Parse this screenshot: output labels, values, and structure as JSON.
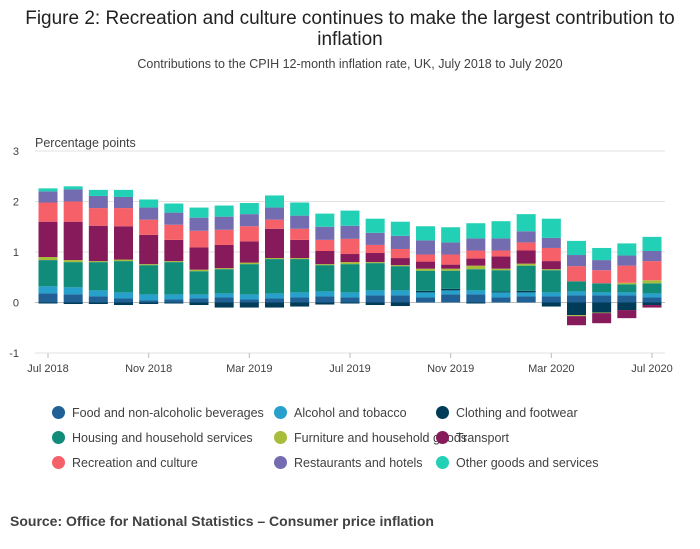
{
  "title": "Figure 2: Recreation and culture continues to make the largest contribution to inflation",
  "subtitle": "Contributions to the CPIH 12-month inflation rate, UK, July 2018 to July 2020",
  "source": "Source: Office for National Statistics – Consumer price inflation",
  "chart_data": {
    "type": "bar",
    "stacked": true,
    "ylabel": "Percentage points",
    "ylim": [
      -1,
      3
    ],
    "yticks": [
      "-1",
      "0",
      "1",
      "2",
      "3"
    ],
    "grid": true,
    "legend_position": "bottom",
    "x_ticks": [
      {
        "index": 0,
        "label": "Jul 2018"
      },
      {
        "index": 4,
        "label": "Nov 2018"
      },
      {
        "index": 8,
        "label": "Mar 2019"
      },
      {
        "index": 12,
        "label": "Jul 2019"
      },
      {
        "index": 16,
        "label": "Nov 2019"
      },
      {
        "index": 20,
        "label": "Mar 2020"
      },
      {
        "index": 24,
        "label": "Jul 2020"
      }
    ],
    "categories": [
      "Jul 2018",
      "Aug 2018",
      "Sep 2018",
      "Oct 2018",
      "Nov 2018",
      "Dec 2018",
      "Jan 2019",
      "Feb 2019",
      "Mar 2019",
      "Apr 2019",
      "May 2019",
      "Jun 2019",
      "Jul 2019",
      "Aug 2019",
      "Sep 2019",
      "Oct 2019",
      "Nov 2019",
      "Dec 2019",
      "Jan 2020",
      "Feb 2020",
      "Mar 2020",
      "Apr 2020",
      "May 2020",
      "Jun 2020",
      "Jul 2020"
    ],
    "series": [
      {
        "name": "Food and non-alcoholic beverages",
        "color": "#206095",
        "values": [
          0.18,
          0.16,
          0.12,
          0.08,
          0.04,
          0.06,
          0.08,
          0.1,
          0.06,
          0.08,
          0.1,
          0.12,
          0.1,
          0.14,
          0.14,
          0.1,
          0.16,
          0.16,
          0.1,
          0.12,
          0.12,
          0.14,
          0.14,
          0.14,
          0.1
        ]
      },
      {
        "name": "Alcohol and tobacco",
        "color": "#27a0cc",
        "values": [
          0.14,
          0.14,
          0.12,
          0.12,
          0.12,
          0.1,
          0.08,
          0.08,
          0.1,
          0.1,
          0.1,
          0.1,
          0.1,
          0.1,
          0.1,
          0.1,
          0.08,
          0.08,
          0.1,
          0.08,
          0.08,
          0.08,
          0.06,
          0.06,
          0.08
        ]
      },
      {
        "name": "Clothing and footwear",
        "color": "#003c57",
        "values": [
          -0.02,
          -0.03,
          -0.03,
          -0.05,
          -0.03,
          -0.02,
          -0.05,
          -0.1,
          -0.1,
          -0.1,
          -0.08,
          -0.04,
          -0.02,
          -0.05,
          -0.07,
          0.03,
          0.03,
          -0.02,
          0.02,
          0.03,
          -0.08,
          -0.25,
          -0.2,
          -0.15,
          -0.05
        ]
      },
      {
        "name": "Housing and household services",
        "color": "#118c7b",
        "values": [
          0.52,
          0.5,
          0.56,
          0.62,
          0.58,
          0.64,
          0.46,
          0.48,
          0.6,
          0.68,
          0.66,
          0.52,
          0.56,
          0.54,
          0.48,
          0.4,
          0.36,
          0.42,
          0.42,
          0.5,
          0.44,
          0.2,
          0.18,
          0.16,
          0.2
        ]
      },
      {
        "name": "Furniture and household goods",
        "color": "#a8bd3a",
        "values": [
          0.06,
          0.04,
          0.02,
          0.03,
          0.02,
          0.02,
          0.03,
          0.02,
          0.03,
          0.02,
          0.02,
          0.02,
          0.04,
          0.02,
          0.02,
          0.04,
          0.04,
          0.07,
          0.03,
          0.04,
          0.02,
          -0.02,
          -0.01,
          0.03,
          0.06
        ]
      },
      {
        "name": "Transport",
        "color": "#871a5b",
        "values": [
          0.7,
          0.76,
          0.7,
          0.66,
          0.58,
          0.42,
          0.44,
          0.46,
          0.42,
          0.58,
          0.36,
          0.26,
          0.16,
          0.18,
          0.14,
          0.14,
          0.08,
          0.14,
          0.24,
          0.26,
          0.16,
          -0.18,
          -0.2,
          -0.16,
          -0.05
        ]
      },
      {
        "name": "Recreation and culture",
        "color": "#f66068",
        "values": [
          0.38,
          0.4,
          0.35,
          0.36,
          0.3,
          0.3,
          0.33,
          0.3,
          0.3,
          0.18,
          0.22,
          0.22,
          0.3,
          0.16,
          0.18,
          0.14,
          0.2,
          0.16,
          0.12,
          0.16,
          0.26,
          0.3,
          0.26,
          0.34,
          0.38
        ]
      },
      {
        "name": "Restaurants and hotels",
        "color": "#746cb1",
        "values": [
          0.22,
          0.24,
          0.24,
          0.22,
          0.24,
          0.24,
          0.26,
          0.26,
          0.24,
          0.24,
          0.26,
          0.26,
          0.26,
          0.24,
          0.26,
          0.28,
          0.24,
          0.24,
          0.24,
          0.22,
          0.2,
          0.22,
          0.2,
          0.2,
          0.2
        ]
      },
      {
        "name": "Other goods and services",
        "color": "#22d0b6",
        "values": [
          0.06,
          0.06,
          0.12,
          0.14,
          0.16,
          0.18,
          0.2,
          0.22,
          0.22,
          0.24,
          0.26,
          0.26,
          0.3,
          0.28,
          0.28,
          0.28,
          0.3,
          0.3,
          0.34,
          0.34,
          0.38,
          0.28,
          0.24,
          0.24,
          0.28
        ]
      }
    ]
  }
}
